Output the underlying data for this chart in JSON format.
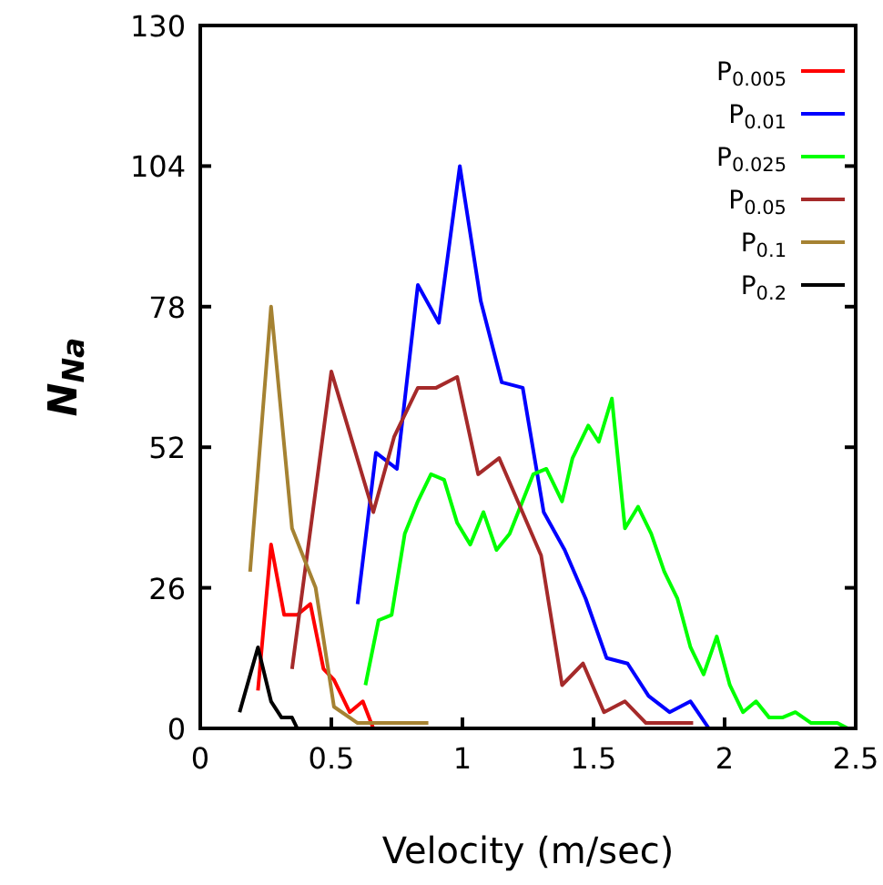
{
  "chart_data": {
    "type": "line",
    "xlabel": "Velocity (m/sec)",
    "ylabel": "N$_{Na}$",
    "xlim": [
      0,
      2.5
    ],
    "ylim": [
      0,
      130
    ],
    "xticks": [
      0,
      0.5,
      1,
      1.5,
      2,
      2.5
    ],
    "yticks": [
      0,
      26,
      52,
      78,
      104,
      130
    ],
    "grid": false,
    "legend": "top right",
    "marker": "none",
    "line_style": "solid",
    "series": [
      {
        "name": "P$_{0.005}$",
        "color": "#ff0000",
        "x": [
          0.22,
          0.27,
          0.32,
          0.37,
          0.42,
          0.47,
          0.51,
          0.57,
          0.62,
          0.66
        ],
        "values": [
          7,
          34,
          21,
          21,
          23,
          11,
          9,
          3,
          5,
          0
        ]
      },
      {
        "name": "P$_{0.01}$",
        "color": "#0000ff",
        "x": [
          0.6,
          0.67,
          0.75,
          0.83,
          0.91,
          0.99,
          1.07,
          1.15,
          1.23,
          1.31,
          1.39,
          1.47,
          1.55,
          1.63,
          1.71,
          1.79,
          1.87,
          1.94
        ],
        "values": [
          23,
          51,
          48,
          82,
          75,
          104,
          79,
          64,
          63,
          40,
          33,
          24,
          13,
          12,
          6,
          3,
          5,
          0
        ]
      },
      {
        "name": "P$_{0.025}$",
        "color": "#00ff00",
        "x": [
          0.63,
          0.68,
          0.73,
          0.78,
          0.83,
          0.88,
          0.93,
          0.98,
          1.03,
          1.08,
          1.13,
          1.18,
          1.27,
          1.32,
          1.38,
          1.42,
          1.48,
          1.52,
          1.57,
          1.62,
          1.67,
          1.72,
          1.77,
          1.82,
          1.87,
          1.92,
          1.97,
          2.02,
          2.07,
          2.12,
          2.17,
          2.22,
          2.27,
          2.33,
          2.43,
          2.47
        ],
        "values": [
          8,
          20,
          21,
          36,
          42,
          47,
          46,
          38,
          34,
          40,
          33,
          36,
          47,
          48,
          42,
          50,
          56,
          53,
          61,
          37,
          41,
          36,
          29,
          24,
          15,
          10,
          17,
          8,
          3,
          5,
          2,
          2,
          3,
          1,
          1,
          0
        ]
      },
      {
        "name": "P$_{0.05}$",
        "color": "#a52a2a",
        "x": [
          0.35,
          0.5,
          0.66,
          0.74,
          0.83,
          0.9,
          0.98,
          1.06,
          1.14,
          1.22,
          1.3,
          1.38,
          1.46,
          1.54,
          1.62,
          1.7,
          1.77,
          1.88
        ],
        "values": [
          11,
          66,
          40,
          54,
          63,
          63,
          65,
          47,
          50,
          41,
          32,
          8,
          12,
          3,
          5,
          1,
          1,
          1
        ]
      },
      {
        "name": "P$_{0.1}$",
        "color": "#a58232",
        "x": [
          0.19,
          0.27,
          0.35,
          0.44,
          0.51,
          0.6,
          0.82,
          0.87
        ],
        "values": [
          29,
          78,
          37,
          26,
          4,
          1,
          1,
          1
        ]
      },
      {
        "name": "P$_{0.2}$",
        "color": "#000000",
        "x": [
          0.15,
          0.22,
          0.27,
          0.31,
          0.35,
          0.37
        ],
        "values": [
          3,
          15,
          5,
          2,
          2,
          0
        ]
      }
    ]
  }
}
